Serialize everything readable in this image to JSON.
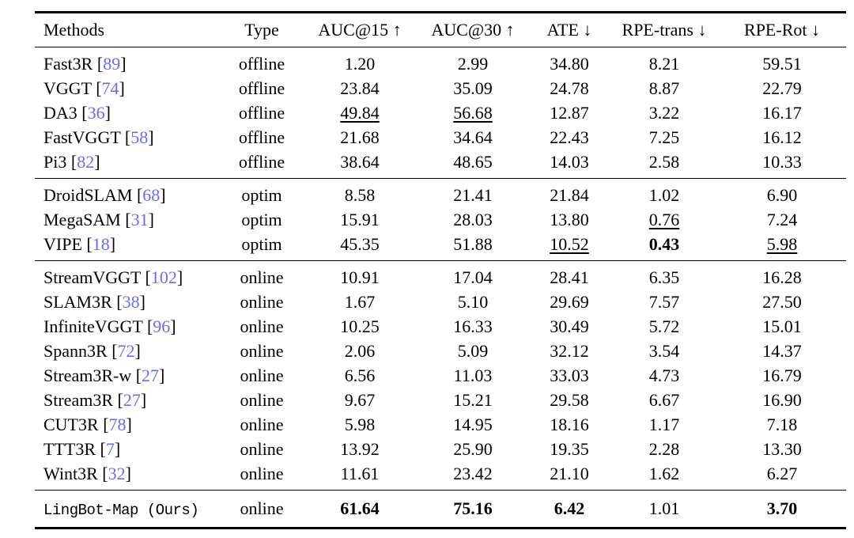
{
  "colors": {
    "background": "#ffffff",
    "text": "#000000",
    "rule": "#000000",
    "citation_link": "#6b6bf2"
  },
  "table": {
    "columns": [
      {
        "key": "methods",
        "label": "Methods",
        "align": "left"
      },
      {
        "key": "type",
        "label": "Type",
        "align": "center"
      },
      {
        "key": "auc15",
        "label": "AUC@15 ↑",
        "align": "center"
      },
      {
        "key": "auc30",
        "label": "AUC@30 ↑",
        "align": "center"
      },
      {
        "key": "ate",
        "label": "ATE ↓",
        "align": "center"
      },
      {
        "key": "rpe-trans",
        "label": "RPE-trans ↓",
        "align": "center"
      },
      {
        "key": "rpe-rot",
        "label": "RPE-Rot ↓",
        "align": "center"
      }
    ],
    "sections": [
      {
        "name": "offline",
        "rows": [
          {
            "method": "Fast3R",
            "cite": "89",
            "type": "offline",
            "values": [
              {
                "v": "1.20"
              },
              {
                "v": "2.99"
              },
              {
                "v": "34.80"
              },
              {
                "v": "8.21"
              },
              {
                "v": "59.51"
              }
            ]
          },
          {
            "method": "VGGT",
            "cite": "74",
            "type": "offline",
            "values": [
              {
                "v": "23.84"
              },
              {
                "v": "35.09"
              },
              {
                "v": "24.78"
              },
              {
                "v": "8.87"
              },
              {
                "v": "22.79"
              }
            ]
          },
          {
            "method": "DA3",
            "cite": "36",
            "type": "offline",
            "values": [
              {
                "v": "49.84",
                "style": "underline"
              },
              {
                "v": "56.68",
                "style": "underline"
              },
              {
                "v": "12.87"
              },
              {
                "v": "3.22"
              },
              {
                "v": "16.17"
              }
            ]
          },
          {
            "method": "FastVGGT",
            "cite": "58",
            "type": "offline",
            "values": [
              {
                "v": "21.68"
              },
              {
                "v": "34.64"
              },
              {
                "v": "22.43"
              },
              {
                "v": "7.25"
              },
              {
                "v": "16.12"
              }
            ]
          },
          {
            "method": "Pi3",
            "cite": "82",
            "type": "offline",
            "values": [
              {
                "v": "38.64"
              },
              {
                "v": "48.65"
              },
              {
                "v": "14.03"
              },
              {
                "v": "2.58"
              },
              {
                "v": "10.33"
              }
            ]
          }
        ]
      },
      {
        "name": "optim",
        "rows": [
          {
            "method": "DroidSLAM",
            "cite": "68",
            "type": "optim",
            "values": [
              {
                "v": "8.58"
              },
              {
                "v": "21.41"
              },
              {
                "v": "21.84"
              },
              {
                "v": "1.02"
              },
              {
                "v": "6.90"
              }
            ]
          },
          {
            "method": "MegaSAM",
            "cite": "31",
            "type": "optim",
            "values": [
              {
                "v": "15.91"
              },
              {
                "v": "28.03"
              },
              {
                "v": "13.80"
              },
              {
                "v": "0.76",
                "style": "underline"
              },
              {
                "v": "7.24"
              }
            ]
          },
          {
            "method": "VIPE",
            "cite": "18",
            "type": "optim",
            "values": [
              {
                "v": "45.35"
              },
              {
                "v": "51.88"
              },
              {
                "v": "10.52",
                "style": "underline"
              },
              {
                "v": "0.43",
                "style": "bold"
              },
              {
                "v": "5.98",
                "style": "underline"
              }
            ]
          }
        ]
      },
      {
        "name": "online",
        "rows": [
          {
            "method": "StreamVGGT",
            "cite": "102",
            "type": "online",
            "values": [
              {
                "v": "10.91"
              },
              {
                "v": "17.04"
              },
              {
                "v": "28.41"
              },
              {
                "v": "6.35"
              },
              {
                "v": "16.28"
              }
            ]
          },
          {
            "method": "SLAM3R",
            "cite": "38",
            "type": "online",
            "values": [
              {
                "v": "1.67"
              },
              {
                "v": "5.10"
              },
              {
                "v": "29.69"
              },
              {
                "v": "7.57"
              },
              {
                "v": "27.50"
              }
            ]
          },
          {
            "method": "InfiniteVGGT",
            "cite": "96",
            "type": "online",
            "values": [
              {
                "v": "10.25"
              },
              {
                "v": "16.33"
              },
              {
                "v": "30.49"
              },
              {
                "v": "5.72"
              },
              {
                "v": "15.01"
              }
            ]
          },
          {
            "method": "Spann3R",
            "cite": "72",
            "type": "online",
            "values": [
              {
                "v": "2.06"
              },
              {
                "v": "5.09"
              },
              {
                "v": "32.12"
              },
              {
                "v": "3.54"
              },
              {
                "v": "14.37"
              }
            ]
          },
          {
            "method": "Stream3R-w",
            "cite": "27",
            "type": "online",
            "values": [
              {
                "v": "6.56"
              },
              {
                "v": "11.03"
              },
              {
                "v": "33.03"
              },
              {
                "v": "4.73"
              },
              {
                "v": "16.79"
              }
            ]
          },
          {
            "method": "Stream3R",
            "cite": "27",
            "type": "online",
            "values": [
              {
                "v": "9.67"
              },
              {
                "v": "15.21"
              },
              {
                "v": "29.58"
              },
              {
                "v": "6.67"
              },
              {
                "v": "16.90"
              }
            ]
          },
          {
            "method": "CUT3R",
            "cite": "78",
            "type": "online",
            "values": [
              {
                "v": "5.98"
              },
              {
                "v": "14.95"
              },
              {
                "v": "18.16"
              },
              {
                "v": "1.17"
              },
              {
                "v": "7.18"
              }
            ]
          },
          {
            "method": "TTT3R",
            "cite": "7",
            "type": "online",
            "values": [
              {
                "v": "13.92"
              },
              {
                "v": "25.90"
              },
              {
                "v": "19.35"
              },
              {
                "v": "2.28"
              },
              {
                "v": "13.30"
              }
            ]
          },
          {
            "method": "Wint3R",
            "cite": "32",
            "type": "online",
            "values": [
              {
                "v": "11.61"
              },
              {
                "v": "23.42"
              },
              {
                "v": "21.10"
              },
              {
                "v": "1.62"
              },
              {
                "v": "6.27"
              }
            ]
          }
        ]
      },
      {
        "name": "ours",
        "rows": [
          {
            "method": "LingBot-Map (Ours)",
            "cite": null,
            "type": "online",
            "method_font": "typewriter",
            "values": [
              {
                "v": "61.64",
                "style": "bold"
              },
              {
                "v": "75.16",
                "style": "bold"
              },
              {
                "v": "6.42",
                "style": "bold"
              },
              {
                "v": "1.01"
              },
              {
                "v": "3.70",
                "style": "bold"
              }
            ]
          }
        ]
      }
    ]
  }
}
